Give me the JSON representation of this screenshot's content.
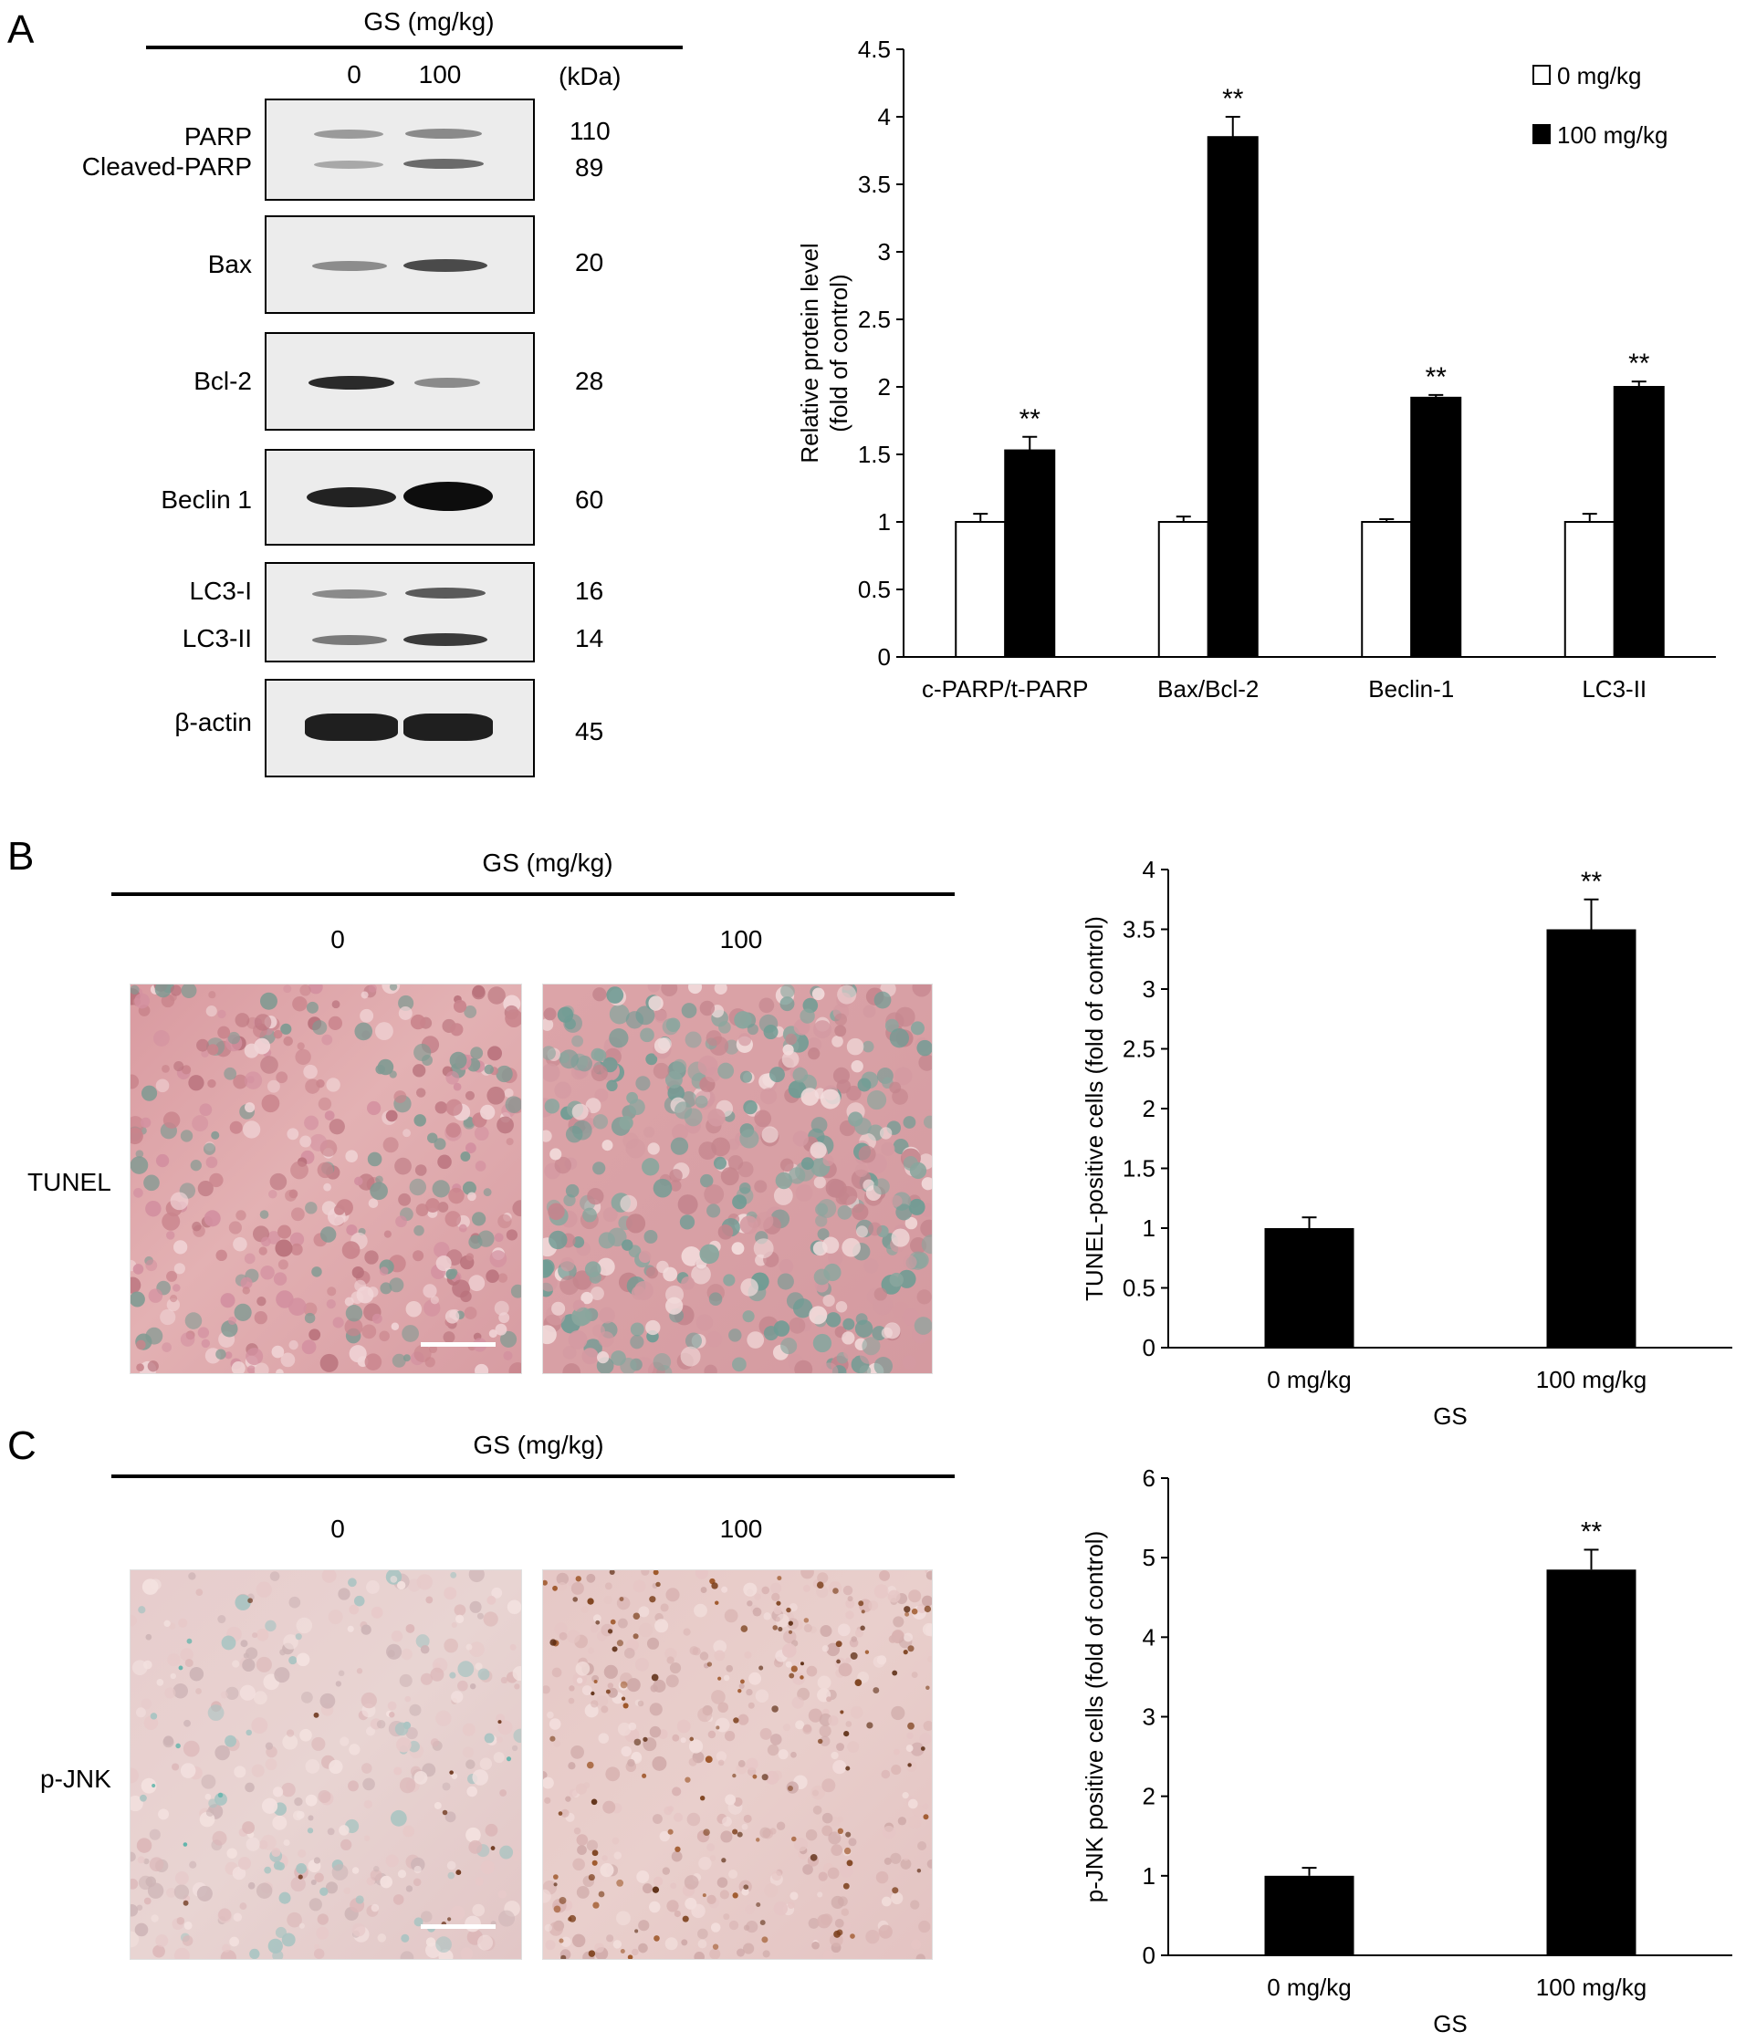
{
  "panels": {
    "a": {
      "letter": "A",
      "blot_header": "GS (mg/kg)",
      "lanes": [
        "0",
        "100"
      ],
      "kda_header": "(kDa)",
      "blots": [
        {
          "labels": [
            "PARP",
            "Cleaved-PARP"
          ],
          "kda": [
            "110",
            "89"
          ]
        },
        {
          "labels": [
            "Bax"
          ],
          "kda": [
            "20"
          ]
        },
        {
          "labels": [
            "Bcl-2"
          ],
          "kda": [
            "28"
          ]
        },
        {
          "labels": [
            "Beclin 1"
          ],
          "kda": [
            "60"
          ]
        },
        {
          "labels": [
            "LC3-I",
            "LC3-II"
          ],
          "kda": [
            "16",
            "14"
          ]
        },
        {
          "labels": [
            "β-actin"
          ],
          "kda": [
            "45"
          ]
        }
      ]
    },
    "b": {
      "letter": "B",
      "header": "GS (mg/kg)",
      "lanes": [
        "0",
        "100"
      ],
      "row_label": "TUNEL"
    },
    "c": {
      "letter": "C",
      "header": "GS (mg/kg)",
      "lanes": [
        "0",
        "100"
      ],
      "row_label": "p-JNK"
    }
  },
  "chart_data": [
    {
      "type": "bar",
      "ylabel": "Relative protein level (fold of control)",
      "ylabel_lines": [
        "Relative protein level",
        "(fold of control)"
      ],
      "categories": [
        "c-PARP/t-PARP",
        "Bax/Bcl-2",
        "Beclin-1",
        "LC3-II"
      ],
      "series": [
        {
          "name": "0 mg/kg",
          "values": [
            1.0,
            1.0,
            1.0,
            1.0
          ],
          "errors": [
            0.06,
            0.04,
            0.02,
            0.06
          ],
          "color": "#ffffff"
        },
        {
          "name": "100 mg/kg",
          "values": [
            1.53,
            3.85,
            1.92,
            2.0
          ],
          "errors": [
            0.1,
            0.15,
            0.02,
            0.04
          ],
          "color": "#000000"
        }
      ],
      "significance": [
        "**",
        "**",
        "**",
        "**"
      ],
      "ylim": [
        0,
        4.5
      ],
      "yticks": [
        "0",
        "0.5",
        "1",
        "1.5",
        "2",
        "2.5",
        "3",
        "3.5",
        "4",
        "4.5"
      ],
      "legend_position": "top-right"
    },
    {
      "type": "bar",
      "ylabel": "TUNEL-positive cells (fold of control)",
      "xlabel": "GS",
      "categories": [
        "0 mg/kg",
        "100 mg/kg"
      ],
      "values": [
        1.0,
        3.5
      ],
      "errors": [
        0.09,
        0.25
      ],
      "significance": [
        "",
        "**"
      ],
      "ylim": [
        0,
        4
      ],
      "yticks": [
        "0",
        "0.5",
        "1",
        "1.5",
        "2",
        "2.5",
        "3",
        "3.5",
        "4"
      ]
    },
    {
      "type": "bar",
      "ylabel": "p-JNK positive cells (fold of control)",
      "xlabel": "GS",
      "categories": [
        "0 mg/kg",
        "100 mg/kg"
      ],
      "values": [
        1.0,
        4.85
      ],
      "errors": [
        0.1,
        0.25
      ],
      "significance": [
        "",
        "**"
      ],
      "ylim": [
        0,
        6
      ],
      "yticks": [
        "0",
        "1",
        "2",
        "3",
        "4",
        "5",
        "6"
      ]
    }
  ]
}
